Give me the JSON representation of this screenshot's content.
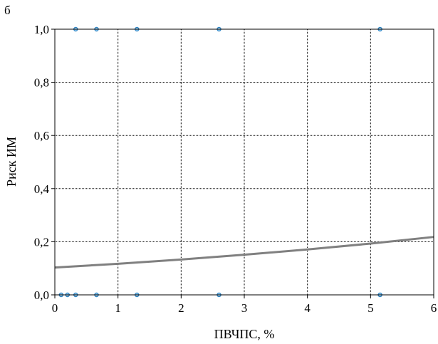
{
  "panel_label": "б",
  "chart_data": {
    "type": "scatter",
    "title": "",
    "xlabel": "ПВЧПС, %",
    "ylabel": "Риск ИМ",
    "xlim": [
      0,
      6
    ],
    "ylim": [
      0,
      1
    ],
    "x_ticks": [
      0,
      1,
      2,
      3,
      4,
      5,
      6
    ],
    "x_tick_labels": [
      "0",
      "1",
      "2",
      "3",
      "4",
      "5",
      "6"
    ],
    "y_ticks": [
      0,
      0.2,
      0.4,
      0.6,
      0.8,
      1.0
    ],
    "y_tick_labels": [
      "0,0",
      "0,2",
      "0,4",
      "0,6",
      "0,8",
      "1,0"
    ],
    "grid": true,
    "points": [
      {
        "x": 0.33,
        "y": 1
      },
      {
        "x": 0.66,
        "y": 1
      },
      {
        "x": 1.3,
        "y": 1
      },
      {
        "x": 2.6,
        "y": 1
      },
      {
        "x": 5.15,
        "y": 1
      },
      {
        "x": 0.1,
        "y": 0
      },
      {
        "x": 0.2,
        "y": 0
      },
      {
        "x": 0.33,
        "y": 0
      },
      {
        "x": 0.66,
        "y": 0
      },
      {
        "x": 1.3,
        "y": 0
      },
      {
        "x": 2.6,
        "y": 0
      },
      {
        "x": 5.15,
        "y": 0
      }
    ],
    "curve": {
      "x": [
        0,
        1,
        2,
        3,
        4,
        5,
        6
      ],
      "y": [
        0.103,
        0.117,
        0.133,
        0.151,
        0.171,
        0.193,
        0.218
      ]
    },
    "colors": {
      "point_stroke": "#2a7fbf",
      "point_fill": "#9fd0ee",
      "curve": "#808080",
      "grid": "#000000",
      "axis": "#000000"
    }
  }
}
